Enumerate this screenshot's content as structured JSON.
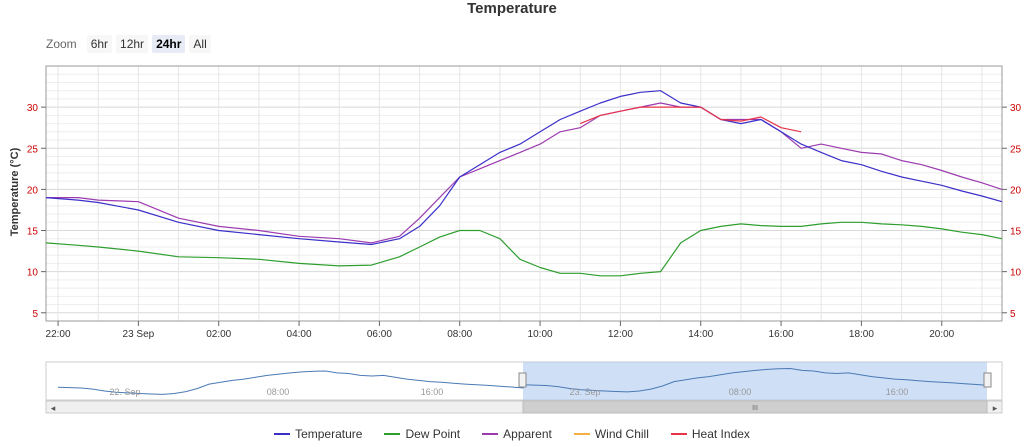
{
  "title": "Temperature",
  "zoom": {
    "label": "Zoom",
    "buttons": [
      {
        "label": "6hr",
        "active": false
      },
      {
        "label": "12hr",
        "active": false
      },
      {
        "label": "24hr",
        "active": true
      },
      {
        "label": "All",
        "active": false
      }
    ]
  },
  "navigator": {
    "labels": [
      "22. Sep",
      "08:00",
      "16:00",
      "23. Sep",
      "08:00",
      "16:00"
    ],
    "scroll_grip": "III"
  },
  "colors": {
    "temperature": "#3b2fc9",
    "dew_point": "#2e9e2e",
    "apparent": "#9c3bb0",
    "wind_chill": "#f5b041",
    "heat_index": "#e8344a",
    "axis_tick": "#cc0000"
  },
  "chart_data": {
    "type": "line",
    "title": "Temperature",
    "ylabel": "Temperature (°C)",
    "ylim": [
      4,
      35
    ],
    "y_ticks": [
      5,
      10,
      15,
      20,
      25,
      30
    ],
    "xlim": [
      -2.3,
      21.5
    ],
    "x_ticks": [
      {
        "x": -2,
        "label": "22:00"
      },
      {
        "x": 0,
        "label": "23 Sep"
      },
      {
        "x": 2,
        "label": "02:00"
      },
      {
        "x": 4,
        "label": "04:00"
      },
      {
        "x": 6,
        "label": "06:00"
      },
      {
        "x": 8,
        "label": "08:00"
      },
      {
        "x": 10,
        "label": "10:00"
      },
      {
        "x": 12,
        "label": "12:00"
      },
      {
        "x": 14,
        "label": "14:00"
      },
      {
        "x": 16,
        "label": "16:00"
      },
      {
        "x": 18,
        "label": "18:00"
      },
      {
        "x": 20,
        "label": "20:00"
      }
    ],
    "x_hours": [
      -2.3,
      -1.5,
      -1,
      0,
      1,
      2,
      3,
      4,
      5,
      5.8,
      6.5,
      7,
      7.5,
      8,
      8.5,
      9,
      9.5,
      10,
      10.5,
      11,
      11.5,
      12,
      12.5,
      13,
      13.5,
      14,
      14.5,
      15,
      15.5,
      16,
      16.5,
      17,
      17.5,
      18,
      18.5,
      19,
      19.5,
      20,
      20.5,
      21,
      21.5
    ],
    "series": [
      {
        "name": "Temperature",
        "values": [
          19,
          18.7,
          18.4,
          17.5,
          16,
          15,
          14.5,
          14,
          13.6,
          13.3,
          14,
          15.5,
          18,
          21.5,
          23,
          24.5,
          25.5,
          27,
          28.5,
          29.5,
          30.5,
          31.3,
          31.8,
          32,
          30.5,
          30,
          28.5,
          28,
          28.5,
          27,
          25.5,
          24.5,
          23.5,
          23,
          22.2,
          21.5,
          21,
          20.5,
          19.8,
          19.2,
          18.5
        ]
      },
      {
        "name": "Dew Point",
        "values": [
          13.5,
          13.2,
          13,
          12.5,
          11.8,
          11.7,
          11.5,
          11,
          10.7,
          10.8,
          11.8,
          13,
          14.2,
          15,
          15,
          14,
          11.5,
          10.5,
          9.8,
          9.8,
          9.5,
          9.5,
          9.8,
          10,
          13.5,
          15,
          15.5,
          15.8,
          15.6,
          15.5,
          15.5,
          15.8,
          16,
          16,
          15.8,
          15.7,
          15.5,
          15.2,
          14.8,
          14.5,
          14
        ]
      },
      {
        "name": "Apparent",
        "values": [
          19,
          19,
          18.7,
          18.5,
          16.5,
          15.5,
          15,
          14.3,
          14,
          13.5,
          14.3,
          16.5,
          19,
          21.5,
          22.5,
          23.5,
          24.5,
          25.5,
          27,
          27.5,
          29,
          29.5,
          30,
          30.5,
          30,
          30,
          28.5,
          28.5,
          28.5,
          27,
          25,
          25.5,
          25,
          24.5,
          24.3,
          23.5,
          23,
          22.3,
          21.5,
          20.8,
          20
        ]
      },
      {
        "name": "Wind Chill",
        "values": []
      },
      {
        "name": "Heat Index",
        "values": [
          null,
          null,
          null,
          null,
          null,
          null,
          null,
          null,
          null,
          null,
          null,
          null,
          null,
          null,
          null,
          null,
          null,
          null,
          null,
          28,
          29,
          29.5,
          30,
          30,
          30,
          30,
          28.5,
          28.3,
          28.8,
          27.5,
          27,
          null,
          null,
          null,
          null,
          null,
          null,
          null,
          null,
          null,
          null
        ]
      }
    ]
  }
}
